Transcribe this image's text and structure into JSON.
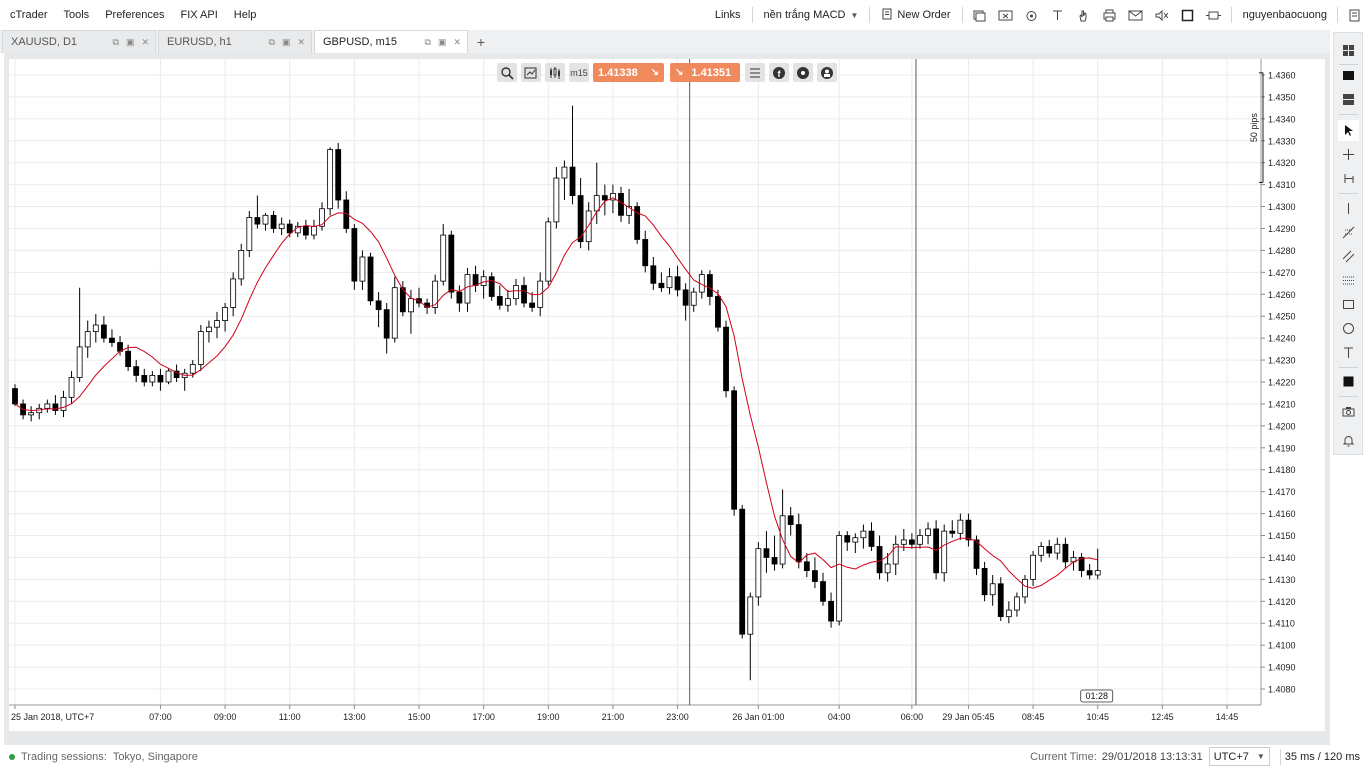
{
  "menu": [
    "cTrader",
    "Tools",
    "Preferences",
    "FIX API",
    "Help"
  ],
  "header_right": {
    "links_label": "Links",
    "template_label": "nền trắng MACD",
    "new_order_label": "New Order",
    "username": "nguyenbaocuong",
    "icons": [
      "window-icon",
      "screenshot-icon",
      "robot-icon",
      "text-icon",
      "hand-icon",
      "printer-icon",
      "mail-icon",
      "sound-icon",
      "square-icon",
      "expand-icon"
    ]
  },
  "tabs": [
    {
      "label": "XAUUSD, D1",
      "active": false
    },
    {
      "label": "EURUSD, h1",
      "active": false
    },
    {
      "label": "GBPUSD, m15",
      "active": true
    }
  ],
  "chart_toolbar": {
    "bid": "1.41338",
    "ask": "1.41351",
    "period_label": "m15",
    "icons": [
      "zoom-icon",
      "chart-settings-icon",
      "indicators-icon",
      "period-icon",
      "list-icon",
      "facebook-icon",
      "share-icon",
      "trader-icon"
    ]
  },
  "pip_label": "50 pips",
  "countdown": "01:28",
  "status": {
    "sessions_label": "Trading sessions:",
    "sessions": "Tokyo, Singapore",
    "current_time_label": "Current Time:",
    "current_time": "29/01/2018 13:13:31",
    "timezone": "UTC+7",
    "latency": "35 ms / 120 ms"
  },
  "chart_data": {
    "type": "candlestick",
    "symbol": "GBPUSD",
    "timeframe": "m15",
    "y_range": [
      1.4075,
      1.4365
    ],
    "y_ticks": [
      "1.4360",
      "1.4350",
      "1.4340",
      "1.4330",
      "1.4320",
      "1.4310",
      "1.4300",
      "1.4290",
      "1.4280",
      "1.4270",
      "1.4260",
      "1.4250",
      "1.4240",
      "1.4230",
      "1.4220",
      "1.4210",
      "1.4200",
      "1.4190",
      "1.4180",
      "1.4170",
      "1.4160",
      "1.4150",
      "1.4140",
      "1.4130",
      "1.4120",
      "1.4110",
      "1.4100",
      "1.4090",
      "1.4080"
    ],
    "x_ticks": [
      "25 Jan 2018, UTC+7",
      "07:00",
      "09:00",
      "11:00",
      "13:00",
      "15:00",
      "17:00",
      "19:00",
      "21:00",
      "23:00",
      "26 Jan 01:00",
      "04:00",
      "06:00",
      "29 Jan 05:45",
      "08:45",
      "10:45",
      "12:45",
      "14:45"
    ],
    "candles": [
      [
        1.4217,
        1.4219,
        1.4209,
        1.421
      ],
      [
        1.421,
        1.4212,
        1.4203,
        1.4205
      ],
      [
        1.4205,
        1.4209,
        1.4202,
        1.4206
      ],
      [
        1.4206,
        1.421,
        1.4203,
        1.4208
      ],
      [
        1.4208,
        1.4212,
        1.4206,
        1.421
      ],
      [
        1.421,
        1.4214,
        1.4205,
        1.4207
      ],
      [
        1.4207,
        1.4216,
        1.4204,
        1.4213
      ],
      [
        1.4213,
        1.4225,
        1.421,
        1.4222
      ],
      [
        1.4222,
        1.4263,
        1.422,
        1.4236
      ],
      [
        1.4236,
        1.4248,
        1.4231,
        1.4243
      ],
      [
        1.4243,
        1.4251,
        1.4238,
        1.4246
      ],
      [
        1.4246,
        1.425,
        1.4238,
        1.424
      ],
      [
        1.424,
        1.4244,
        1.4236,
        1.4238
      ],
      [
        1.4238,
        1.4241,
        1.4232,
        1.4234
      ],
      [
        1.4234,
        1.4237,
        1.4225,
        1.4227
      ],
      [
        1.4227,
        1.423,
        1.422,
        1.4223
      ],
      [
        1.4223,
        1.4226,
        1.4218,
        1.422
      ],
      [
        1.422,
        1.4225,
        1.4218,
        1.4223
      ],
      [
        1.4223,
        1.4226,
        1.4216,
        1.422
      ],
      [
        1.422,
        1.4226,
        1.4219,
        1.4225
      ],
      [
        1.4225,
        1.4228,
        1.422,
        1.4222
      ],
      [
        1.4222,
        1.4226,
        1.4216,
        1.4224
      ],
      [
        1.4224,
        1.423,
        1.4222,
        1.4228
      ],
      [
        1.4228,
        1.4246,
        1.4225,
        1.4243
      ],
      [
        1.4243,
        1.4248,
        1.4238,
        1.4245
      ],
      [
        1.4245,
        1.4252,
        1.424,
        1.4248
      ],
      [
        1.4248,
        1.4256,
        1.4243,
        1.4254
      ],
      [
        1.4254,
        1.427,
        1.425,
        1.4267
      ],
      [
        1.4267,
        1.4283,
        1.4264,
        1.428
      ],
      [
        1.428,
        1.4298,
        1.4277,
        1.4295
      ],
      [
        1.4295,
        1.4305,
        1.429,
        1.4292
      ],
      [
        1.4292,
        1.4297,
        1.4289,
        1.4296
      ],
      [
        1.4296,
        1.4298,
        1.4288,
        1.429
      ],
      [
        1.429,
        1.4295,
        1.4287,
        1.4292
      ],
      [
        1.4292,
        1.4294,
        1.4286,
        1.4288
      ],
      [
        1.4288,
        1.4293,
        1.4286,
        1.4291
      ],
      [
        1.4291,
        1.4294,
        1.4285,
        1.4287
      ],
      [
        1.4287,
        1.4294,
        1.4285,
        1.4291
      ],
      [
        1.4291,
        1.4302,
        1.4289,
        1.4299
      ],
      [
        1.4299,
        1.4327,
        1.4296,
        1.4326
      ],
      [
        1.4326,
        1.4329,
        1.4299,
        1.4303
      ],
      [
        1.4303,
        1.4307,
        1.4288,
        1.429
      ],
      [
        1.429,
        1.4292,
        1.4262,
        1.4266
      ],
      [
        1.4266,
        1.428,
        1.4262,
        1.4277
      ],
      [
        1.4277,
        1.4279,
        1.4255,
        1.4257
      ],
      [
        1.4257,
        1.4261,
        1.4245,
        1.4253
      ],
      [
        1.4253,
        1.4256,
        1.4233,
        1.424
      ],
      [
        1.424,
        1.4268,
        1.4238,
        1.4263
      ],
      [
        1.4263,
        1.4266,
        1.425,
        1.4252
      ],
      [
        1.4252,
        1.4262,
        1.4242,
        1.4258
      ],
      [
        1.4258,
        1.4263,
        1.4254,
        1.4256
      ],
      [
        1.4256,
        1.4258,
        1.4251,
        1.4254
      ],
      [
        1.4254,
        1.4269,
        1.4251,
        1.4266
      ],
      [
        1.4266,
        1.4292,
        1.4264,
        1.4287
      ],
      [
        1.4287,
        1.4289,
        1.4258,
        1.4261
      ],
      [
        1.4261,
        1.4264,
        1.4252,
        1.4256
      ],
      [
        1.4256,
        1.4272,
        1.4252,
        1.4269
      ],
      [
        1.4269,
        1.4273,
        1.4261,
        1.4264
      ],
      [
        1.4264,
        1.4271,
        1.4258,
        1.4268
      ],
      [
        1.4268,
        1.427,
        1.4257,
        1.4259
      ],
      [
        1.4259,
        1.4264,
        1.4253,
        1.4255
      ],
      [
        1.4255,
        1.4262,
        1.4252,
        1.4258
      ],
      [
        1.4258,
        1.4267,
        1.4255,
        1.4264
      ],
      [
        1.4264,
        1.4268,
        1.4254,
        1.4256
      ],
      [
        1.4256,
        1.4261,
        1.4252,
        1.4254
      ],
      [
        1.4254,
        1.427,
        1.425,
        1.4266
      ],
      [
        1.4266,
        1.4295,
        1.4264,
        1.4293
      ],
      [
        1.4293,
        1.4318,
        1.429,
        1.4313
      ],
      [
        1.4313,
        1.4321,
        1.4303,
        1.4318
      ],
      [
        1.4318,
        1.4346,
        1.4301,
        1.4305
      ],
      [
        1.4305,
        1.4313,
        1.4281,
        1.4284
      ],
      [
        1.4284,
        1.4302,
        1.428,
        1.4298
      ],
      [
        1.4298,
        1.432,
        1.4292,
        1.4305
      ],
      [
        1.4305,
        1.431,
        1.4296,
        1.4303
      ],
      [
        1.4303,
        1.431,
        1.4297,
        1.4306
      ],
      [
        1.4306,
        1.4309,
        1.4293,
        1.4296
      ],
      [
        1.4296,
        1.4308,
        1.4292,
        1.43
      ],
      [
        1.43,
        1.4302,
        1.4283,
        1.4285
      ],
      [
        1.4285,
        1.4289,
        1.427,
        1.4273
      ],
      [
        1.4273,
        1.4277,
        1.4262,
        1.4265
      ],
      [
        1.4265,
        1.427,
        1.4261,
        1.4263
      ],
      [
        1.4263,
        1.4272,
        1.426,
        1.4268
      ],
      [
        1.4268,
        1.4273,
        1.4259,
        1.4262
      ],
      [
        1.4262,
        1.4265,
        1.4248,
        1.4255
      ],
      [
        1.4255,
        1.4263,
        1.4252,
        1.4261
      ],
      [
        1.4261,
        1.4271,
        1.4258,
        1.4269
      ],
      [
        1.4269,
        1.4271,
        1.4255,
        1.4259
      ],
      [
        1.4259,
        1.4262,
        1.4243,
        1.4245
      ],
      [
        1.4245,
        1.4248,
        1.4213,
        1.4216
      ],
      [
        1.4216,
        1.4218,
        1.4159,
        1.4162
      ],
      [
        1.4162,
        1.4164,
        1.4103,
        1.4105
      ],
      [
        1.4105,
        1.4124,
        1.4084,
        1.4122
      ],
      [
        1.4122,
        1.4147,
        1.4118,
        1.4144
      ],
      [
        1.4144,
        1.4152,
        1.4133,
        1.414
      ],
      [
        1.414,
        1.415,
        1.4134,
        1.4137
      ],
      [
        1.4137,
        1.4171,
        1.4135,
        1.4159
      ],
      [
        1.4159,
        1.4163,
        1.415,
        1.4155
      ],
      [
        1.4155,
        1.416,
        1.4135,
        1.4138
      ],
      [
        1.4138,
        1.4142,
        1.4131,
        1.4134
      ],
      [
        1.4134,
        1.414,
        1.4126,
        1.4129
      ],
      [
        1.4129,
        1.4133,
        1.4118,
        1.412
      ],
      [
        1.412,
        1.4124,
        1.4108,
        1.4111
      ],
      [
        1.4111,
        1.4152,
        1.4109,
        1.415
      ],
      [
        1.415,
        1.4152,
        1.4143,
        1.4147
      ],
      [
        1.4147,
        1.4151,
        1.4142,
        1.4149
      ],
      [
        1.4149,
        1.4155,
        1.4144,
        1.4152
      ],
      [
        1.4152,
        1.4156,
        1.4143,
        1.4145
      ],
      [
        1.4145,
        1.415,
        1.413,
        1.4133
      ],
      [
        1.4133,
        1.4142,
        1.4129,
        1.4137
      ],
      [
        1.4137,
        1.415,
        1.4132,
        1.4146
      ],
      [
        1.4146,
        1.4153,
        1.4143,
        1.4148
      ],
      [
        1.4148,
        1.4151,
        1.4144,
        1.4146
      ],
      [
        1.4146,
        1.4153,
        1.4144,
        1.415
      ],
      [
        1.415,
        1.4156,
        1.4146,
        1.4153
      ],
      [
        1.4153,
        1.4157,
        1.413,
        1.4133
      ],
      [
        1.4133,
        1.4155,
        1.4129,
        1.4152
      ],
      [
        1.4152,
        1.4157,
        1.4149,
        1.4151
      ],
      [
        1.4151,
        1.416,
        1.4148,
        1.4157
      ],
      [
        1.4157,
        1.416,
        1.4145,
        1.4148
      ],
      [
        1.4148,
        1.415,
        1.4132,
        1.4135
      ],
      [
        1.4135,
        1.4138,
        1.412,
        1.4123
      ],
      [
        1.4123,
        1.4132,
        1.4118,
        1.4128
      ],
      [
        1.4128,
        1.4131,
        1.4111,
        1.4113
      ],
      [
        1.4113,
        1.412,
        1.411,
        1.4116
      ],
      [
        1.4116,
        1.4124,
        1.4113,
        1.4122
      ],
      [
        1.4122,
        1.4132,
        1.4119,
        1.413
      ],
      [
        1.413,
        1.4143,
        1.4127,
        1.4141
      ],
      [
        1.4141,
        1.4147,
        1.4138,
        1.4145
      ],
      [
        1.4145,
        1.4148,
        1.414,
        1.4142
      ],
      [
        1.4142,
        1.4149,
        1.4139,
        1.4146
      ],
      [
        1.4146,
        1.4149,
        1.4135,
        1.4138
      ],
      [
        1.4138,
        1.4143,
        1.4134,
        1.414
      ],
      [
        1.414,
        1.4142,
        1.4131,
        1.4134
      ],
      [
        1.4134,
        1.4137,
        1.413,
        1.4132
      ],
      [
        1.4132,
        1.4144,
        1.413,
        1.4134
      ]
    ],
    "ma_color": "#d0021b",
    "up_color": "#ffffff",
    "down_color": "#000000",
    "grid": true
  },
  "colors": {
    "accent": "#f08a5d",
    "frame": "#e6e8ea"
  }
}
